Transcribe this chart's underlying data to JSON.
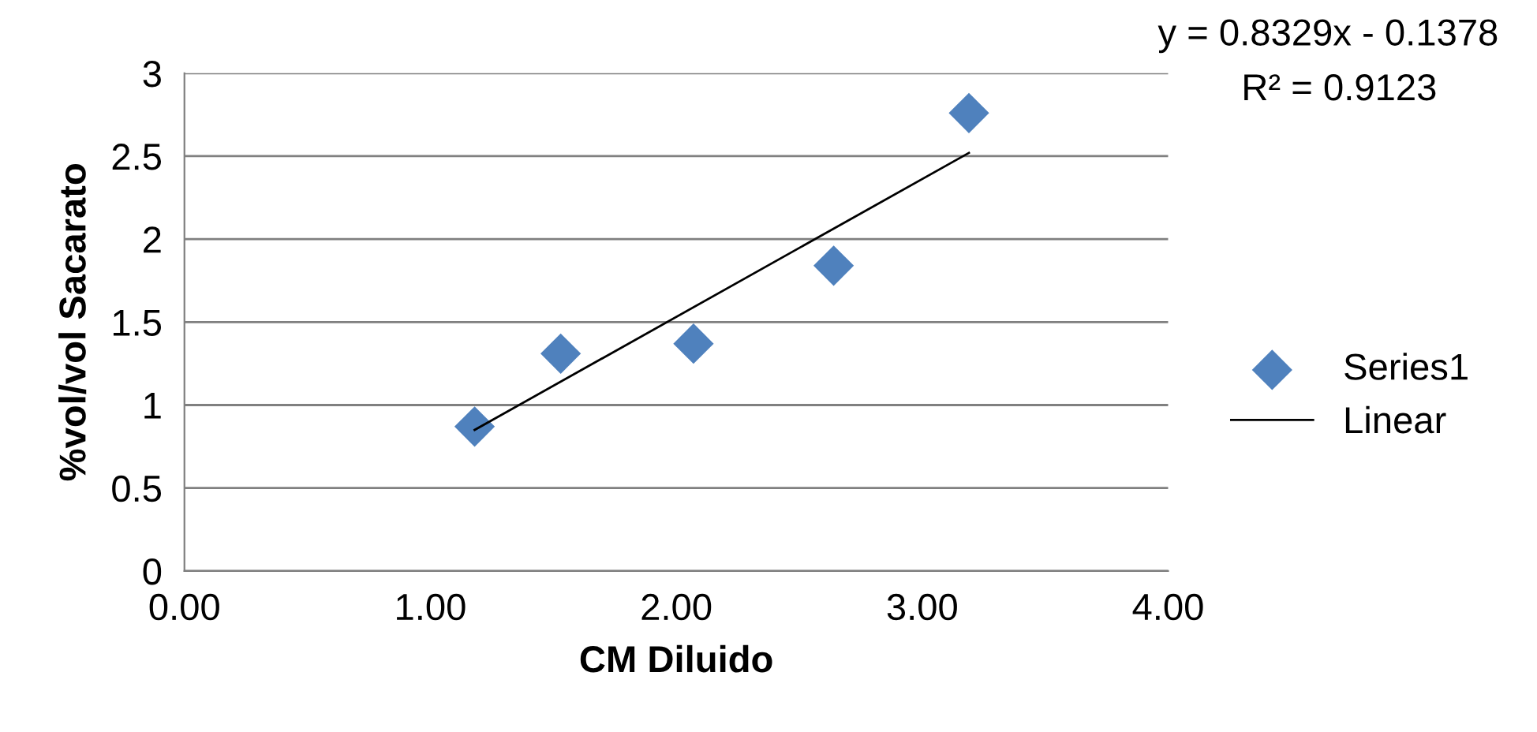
{
  "chart_data": {
    "type": "scatter",
    "xlabel": "CM Diluido",
    "ylabel": "%vol/vol Sacarato",
    "xlim": [
      0,
      4
    ],
    "xticks": [
      {
        "value": 0,
        "label": "0.00"
      },
      {
        "value": 1,
        "label": "1.00"
      },
      {
        "value": 2,
        "label": "2.00"
      },
      {
        "value": 3,
        "label": "3.00"
      },
      {
        "value": 4,
        "label": "4.00"
      }
    ],
    "ylim": [
      0,
      3
    ],
    "yticks": [
      0,
      0.5,
      1,
      1.5,
      2,
      2.5,
      3
    ],
    "grid": "y",
    "legend": "right",
    "annotations": [
      "y = 0.8329x - 0.1378",
      "R² = 0.9123"
    ],
    "series": [
      {
        "name": "Series1",
        "marker": "diamond",
        "color": "#4f81bd",
        "x": [
          1.18,
          1.53,
          2.07,
          2.64,
          3.19
        ],
        "values": [
          0.87,
          1.31,
          1.37,
          1.84,
          2.76
        ]
      },
      {
        "name": "Linear",
        "type": "line",
        "marker": "none",
        "color": "#000000",
        "x": [
          1.18,
          3.19
        ],
        "values": [
          0.85,
          2.52
        ]
      }
    ]
  }
}
